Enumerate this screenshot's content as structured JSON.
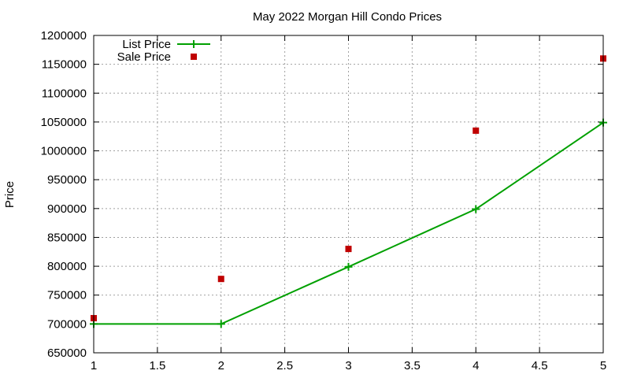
{
  "chart_data": {
    "type": "line",
    "title": "May 2022 Morgan Hill Condo Prices",
    "xlabel": "",
    "ylabel": "Price",
    "xlim": [
      1,
      5
    ],
    "ylim": [
      650000,
      1200000
    ],
    "xticks": [
      1,
      1.5,
      2,
      2.5,
      3,
      3.5,
      4,
      4.5,
      5
    ],
    "yticks": [
      650000,
      700000,
      750000,
      800000,
      850000,
      900000,
      950000,
      1000000,
      1050000,
      1100000,
      1150000,
      1200000
    ],
    "grid": true,
    "legend_position": "top-left",
    "series": [
      {
        "name": "List Price",
        "style": "line-with-plus-markers",
        "color": "#00a000",
        "x": [
          1,
          2,
          3,
          4,
          5
        ],
        "y": [
          700000,
          700000,
          799000,
          899000,
          1049000
        ]
      },
      {
        "name": "Sale Price",
        "style": "square-markers",
        "color": "#c00000",
        "x": [
          1,
          2,
          3,
          4,
          5
        ],
        "y": [
          710000,
          778000,
          830000,
          1035000,
          1160000
        ]
      }
    ]
  }
}
